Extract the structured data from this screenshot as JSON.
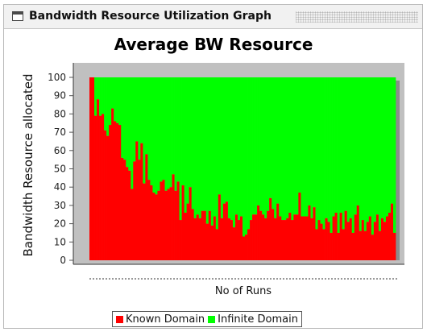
{
  "window": {
    "title": "Bandwidth Resource Utilization Graph"
  },
  "chart_data": {
    "type": "bar",
    "stacked": true,
    "title": "Average BW Resource",
    "xlabel": "No of Runs",
    "ylabel": "Bandwidth Resource allocated",
    "ylim": [
      0,
      100
    ],
    "yticks": [
      0,
      10,
      20,
      30,
      40,
      50,
      60,
      70,
      80,
      90,
      100
    ],
    "grid": false,
    "legend_position": "bottom",
    "colors": {
      "known": "#ff0000",
      "infinite": "#00ff00",
      "plot_background": "#c0c0c0"
    },
    "series": [
      {
        "name": "Known Domain",
        "values": [
          100,
          100,
          79,
          88,
          79,
          80,
          71,
          68,
          74,
          83,
          76,
          75,
          74,
          56,
          55,
          51,
          49,
          39,
          54,
          65,
          55,
          64,
          42,
          58,
          44,
          41,
          37,
          36,
          38,
          43,
          44,
          38,
          39,
          40,
          47,
          38,
          43,
          22,
          41,
          26,
          31,
          40,
          28,
          23,
          25,
          23,
          27,
          27,
          20,
          27,
          19,
          24,
          17,
          36,
          23,
          31,
          32,
          23,
          22,
          18,
          25,
          22,
          24,
          13,
          14,
          17,
          22,
          25,
          25,
          30,
          27,
          25,
          23,
          27,
          34,
          28,
          23,
          31,
          24,
          22,
          22,
          23,
          26,
          22,
          25,
          25,
          37,
          24,
          24,
          24,
          30,
          23,
          29,
          17,
          22,
          20,
          17,
          23,
          21,
          15,
          24,
          26,
          15,
          26,
          17,
          27,
          21,
          23,
          15,
          25,
          30,
          16,
          22,
          16,
          21,
          24,
          14,
          21,
          25,
          16,
          23,
          21,
          24,
          26,
          31,
          15
        ],
        "color": "#ff0000"
      },
      {
        "name": "Infinite Domain",
        "values_note": "complement to 100",
        "color": "#00ff00"
      }
    ]
  }
}
